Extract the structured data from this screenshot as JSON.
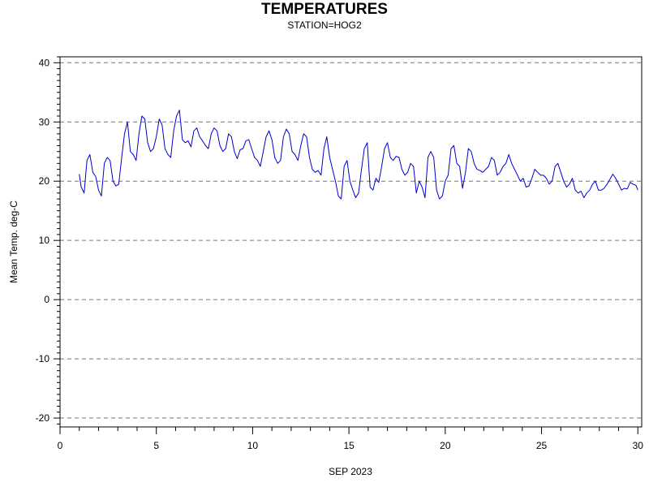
{
  "chart_data": {
    "type": "line",
    "title": "TEMPERATURES",
    "subtitle": "STATION=HOG2",
    "xlabel": "SEP 2023",
    "ylabel": "Mean Temp. deg-C",
    "xlim": [
      0,
      30.2
    ],
    "ylim": [
      -21.5,
      41
    ],
    "xticks": [
      0,
      5,
      10,
      15,
      20,
      25,
      30
    ],
    "yticks": [
      -20,
      -10,
      0,
      10,
      20,
      30,
      40
    ],
    "grid": "horizontal-dashed",
    "series": [
      {
        "color": "#0000cc",
        "x": [
          1.0,
          1.1,
          1.25,
          1.4,
          1.55,
          1.7,
          1.85,
          2.0,
          2.15,
          2.3,
          2.45,
          2.6,
          2.75,
          2.9,
          3.05,
          3.2,
          3.35,
          3.5,
          3.65,
          3.8,
          3.95,
          4.1,
          4.25,
          4.4,
          4.55,
          4.7,
          4.85,
          5.0,
          5.15,
          5.3,
          5.45,
          5.6,
          5.75,
          5.9,
          6.05,
          6.2,
          6.35,
          6.5,
          6.65,
          6.8,
          6.95,
          7.1,
          7.25,
          7.4,
          7.55,
          7.7,
          7.85,
          8.0,
          8.15,
          8.3,
          8.45,
          8.6,
          8.75,
          8.9,
          9.05,
          9.2,
          9.35,
          9.5,
          9.65,
          9.8,
          9.95,
          10.1,
          10.25,
          10.4,
          10.55,
          10.7,
          10.85,
          11.0,
          11.15,
          11.3,
          11.45,
          11.6,
          11.75,
          11.9,
          12.05,
          12.2,
          12.35,
          12.5,
          12.65,
          12.8,
          12.95,
          13.1,
          13.25,
          13.4,
          13.55,
          13.7,
          13.85,
          14.0,
          14.15,
          14.3,
          14.45,
          14.6,
          14.75,
          14.9,
          15.05,
          15.2,
          15.35,
          15.5,
          15.65,
          15.8,
          15.95,
          16.1,
          16.25,
          16.4,
          16.55,
          16.7,
          16.85,
          17.0,
          17.15,
          17.3,
          17.45,
          17.6,
          17.75,
          17.9,
          18.05,
          18.2,
          18.35,
          18.5,
          18.65,
          18.8,
          18.95,
          19.1,
          19.25,
          19.4,
          19.55,
          19.7,
          19.85,
          20.0,
          20.15,
          20.3,
          20.45,
          20.6,
          20.75,
          20.9,
          21.05,
          21.2,
          21.35,
          21.5,
          21.65,
          21.8,
          21.95,
          22.1,
          22.25,
          22.4,
          22.55,
          22.7,
          22.85,
          23.0,
          23.15,
          23.3,
          23.45,
          23.6,
          23.75,
          23.9,
          24.05,
          24.2,
          24.35,
          24.5,
          24.65,
          24.8,
          24.95,
          25.1,
          25.25,
          25.4,
          25.55,
          25.7,
          25.85,
          26.0,
          26.15,
          26.3,
          26.45,
          26.6,
          26.75,
          26.9,
          27.05,
          27.2,
          27.35,
          27.5,
          27.65,
          27.8,
          27.95,
          28.1,
          28.25,
          28.4,
          28.55,
          28.7,
          28.85,
          29.0,
          29.15,
          29.3,
          29.45,
          29.6,
          29.75,
          29.9,
          30.0
        ],
        "y": [
          21.2,
          19.0,
          18.0,
          23.5,
          24.5,
          21.5,
          20.8,
          18.5,
          17.5,
          23.0,
          24.0,
          23.5,
          20.0,
          19.2,
          19.5,
          24.0,
          28.0,
          30.0,
          25.0,
          24.5,
          23.5,
          28.0,
          31.0,
          30.5,
          26.5,
          25.0,
          25.5,
          27.5,
          30.5,
          29.5,
          25.5,
          24.5,
          24.0,
          28.5,
          31.0,
          32.0,
          27.0,
          26.5,
          26.8,
          25.8,
          28.5,
          29.0,
          27.5,
          26.8,
          26.0,
          25.5,
          28.0,
          29.0,
          28.5,
          26.0,
          25.0,
          25.5,
          28.0,
          27.5,
          25.0,
          23.8,
          25.3,
          25.5,
          26.8,
          27.0,
          25.5,
          24.0,
          23.5,
          22.5,
          25.0,
          27.5,
          28.5,
          27.0,
          24.0,
          23.0,
          23.5,
          27.5,
          28.8,
          28.0,
          25.0,
          24.5,
          23.5,
          26.0,
          28.0,
          27.5,
          24.0,
          22.0,
          21.5,
          21.8,
          21.0,
          25.5,
          27.5,
          24.0,
          22.0,
          20.0,
          17.5,
          17.0,
          22.5,
          23.5,
          20.0,
          18.5,
          17.2,
          18.0,
          22.0,
          25.5,
          26.5,
          19.0,
          18.5,
          20.5,
          19.8,
          22.5,
          25.5,
          26.5,
          24.0,
          23.5,
          24.2,
          24.0,
          22.0,
          21.0,
          21.5,
          23.0,
          22.5,
          18.0,
          20.0,
          19.0,
          17.2,
          24.0,
          25.0,
          24.0,
          18.5,
          17.0,
          17.5,
          20.0,
          21.0,
          25.5,
          26.0,
          23.0,
          22.5,
          18.8,
          21.5,
          25.5,
          25.0,
          23.0,
          22.0,
          21.8,
          21.5,
          22.0,
          22.5,
          24.0,
          23.5,
          21.0,
          21.5,
          22.5,
          23.0,
          24.5,
          23.0,
          22.0,
          21.0,
          20.0,
          20.5,
          19.0,
          19.2,
          20.5,
          22.0,
          21.5,
          21.0,
          21.0,
          20.5,
          19.5,
          20.0,
          22.5,
          23.0,
          21.5,
          20.0,
          19.0,
          19.5,
          20.5,
          18.5,
          18.0,
          18.3,
          17.2,
          18.0,
          18.5,
          19.5,
          20.0,
          18.5,
          18.5,
          18.8,
          19.5,
          20.3,
          21.2,
          20.5,
          19.5,
          18.5,
          18.8,
          18.7,
          19.8,
          19.5,
          19.3,
          18.5
        ],
        "values_note": ""
      }
    ]
  }
}
